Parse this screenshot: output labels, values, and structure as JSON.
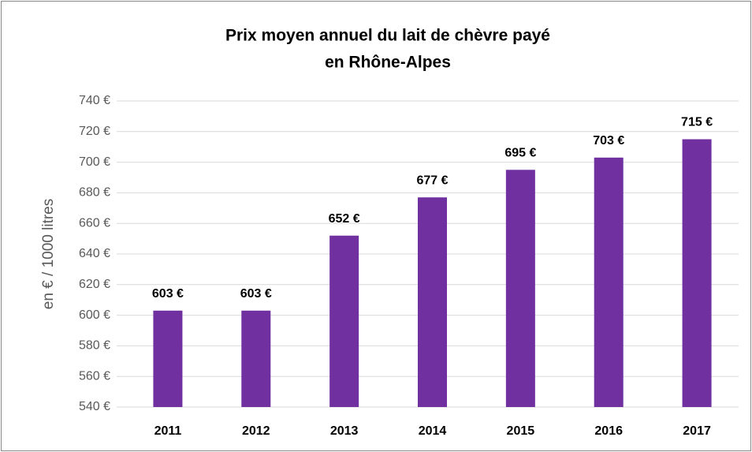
{
  "chart_data": {
    "type": "bar",
    "title": [
      "Prix moyen annuel du lait de chèvre payé",
      "en Rhône-Alpes"
    ],
    "y_axis_label": "en € / 1000 litres",
    "categories": [
      "2011",
      "2012",
      "2013",
      "2014",
      "2015",
      "2016",
      "2017"
    ],
    "values": [
      603,
      603,
      652,
      677,
      695,
      703,
      715
    ],
    "value_labels": [
      "603 €",
      "603 €",
      "652 €",
      "677 €",
      "695 €",
      "703 €",
      "715 €"
    ],
    "color": "#7030a0",
    "ylim": [
      540,
      740
    ],
    "yticks": [
      {
        "value": 540,
        "label": "540 €"
      },
      {
        "value": 560,
        "label": "560 €"
      },
      {
        "value": 580,
        "label": "580 €"
      },
      {
        "value": 600,
        "label": "600 €"
      },
      {
        "value": 620,
        "label": "620 €"
      },
      {
        "value": 640,
        "label": "640 €"
      },
      {
        "value": 660,
        "label": "660 €"
      },
      {
        "value": 680,
        "label": "680 €"
      },
      {
        "value": 700,
        "label": "700 €"
      },
      {
        "value": 720,
        "label": "720 €"
      },
      {
        "value": 740,
        "label": "740 €"
      }
    ],
    "grid": true
  }
}
